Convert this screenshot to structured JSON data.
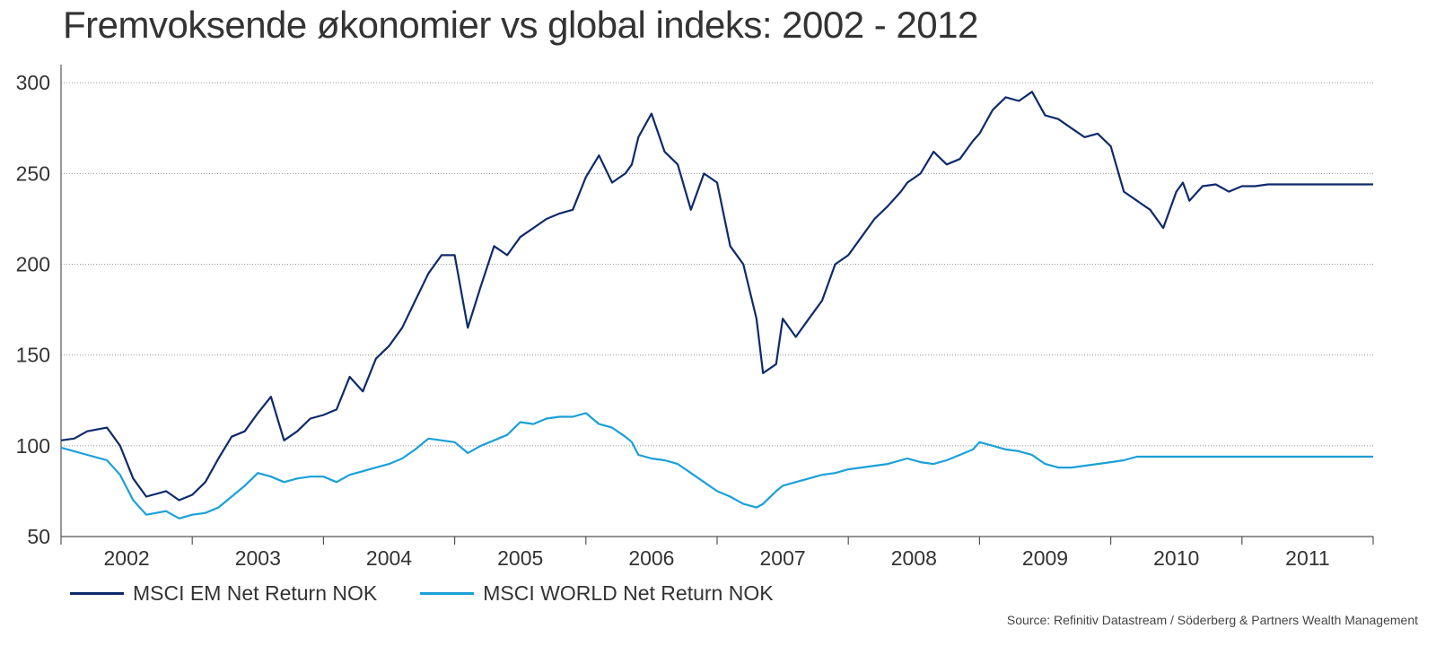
{
  "title": "Fremvoksende økonomier vs global indeks: 2002 - 2012",
  "source": "Source: Refinitiv Datastream / Söderberg & Partners Wealth Management",
  "chart_data": {
    "type": "line",
    "title": "Fremvoksende økonomier vs global indeks: 2002 - 2012",
    "xlabel": "",
    "ylabel": "",
    "xlim": [
      2002.0,
      2012.0
    ],
    "ylim": [
      50,
      310
    ],
    "yticks": [
      50,
      100,
      150,
      200,
      250,
      300
    ],
    "xtick_labels": [
      "2002",
      "2003",
      "2004",
      "2005",
      "2006",
      "2007",
      "2008",
      "2009",
      "2010",
      "2011"
    ],
    "grid": "horizontal dotted",
    "legend": "bottom",
    "series": [
      {
        "name": "MSCI EM Net Return NOK",
        "color": "#0d2a6b",
        "x": [
          2002.0,
          2002.1,
          2002.2,
          2002.35,
          2002.45,
          2002.55,
          2002.65,
          2002.8,
          2002.9,
          2003.0,
          2003.1,
          2003.2,
          2003.3,
          2003.4,
          2003.5,
          2003.6,
          2003.7,
          2003.8,
          2003.9,
          2004.0,
          2004.1,
          2004.2,
          2004.3,
          2004.4,
          2004.5,
          2004.6,
          2004.7,
          2004.8,
          2004.9,
          2005.0,
          2005.1,
          2005.2,
          2005.3,
          2005.4,
          2005.5,
          2005.6,
          2005.7,
          2005.8,
          2005.9,
          2006.0,
          2006.1,
          2006.2,
          2006.3,
          2006.35,
          2006.4,
          2006.5,
          2006.6,
          2006.7,
          2006.8,
          2006.9,
          2007.0,
          2007.1,
          2007.2,
          2007.3,
          2007.35,
          2007.45,
          2007.5,
          2007.6,
          2007.7,
          2007.8,
          2007.9,
          2008.0,
          2008.1,
          2008.2,
          2008.3,
          2008.4,
          2008.45,
          2008.55,
          2008.65,
          2008.75,
          2008.85,
          2008.95,
          2009.0,
          2009.1,
          2009.2,
          2009.3,
          2009.4,
          2009.5,
          2009.6,
          2009.7,
          2009.8,
          2009.9,
          2010.0,
          2010.1,
          2010.2,
          2010.3,
          2010.4,
          2010.5,
          2010.55,
          2010.6,
          2010.7,
          2010.8,
          2010.9,
          2011.0,
          2011.1,
          2011.2,
          2011.25,
          2011.3,
          2011.4,
          2011.5,
          2011.6,
          2011.7,
          2011.8,
          2011.9,
          2012.0
        ],
        "values": [
          103,
          104,
          108,
          110,
          100,
          82,
          72,
          75,
          70,
          73,
          80,
          93,
          105,
          108,
          118,
          127,
          103,
          108,
          115,
          117,
          120,
          138,
          130,
          148,
          155,
          165,
          180,
          195,
          205,
          205,
          165,
          188,
          210,
          205,
          215,
          220,
          225,
          228,
          230,
          248,
          260,
          245,
          250,
          255,
          270,
          283,
          262,
          255,
          230,
          250,
          245,
          210,
          200,
          170,
          140,
          145,
          170,
          160,
          170,
          180,
          200,
          205,
          215,
          225,
          232,
          240,
          245,
          250,
          262,
          255,
          258,
          268,
          272,
          285,
          292,
          290,
          295,
          282,
          280,
          275,
          270,
          272,
          265,
          240,
          235,
          230,
          220,
          240,
          245,
          235,
          243,
          244,
          240,
          243,
          243,
          244,
          244,
          244,
          244,
          244,
          244,
          244,
          244,
          244,
          244
        ]
      },
      {
        "name": "MSCI WORLD Net Return NOK",
        "color": "#1aa0d8",
        "x": [
          2002.0,
          2002.1,
          2002.2,
          2002.35,
          2002.45,
          2002.55,
          2002.65,
          2002.8,
          2002.9,
          2003.0,
          2003.1,
          2003.2,
          2003.3,
          2003.4,
          2003.5,
          2003.6,
          2003.7,
          2003.8,
          2003.9,
          2004.0,
          2004.1,
          2004.2,
          2004.3,
          2004.4,
          2004.5,
          2004.6,
          2004.7,
          2004.8,
          2004.9,
          2005.0,
          2005.1,
          2005.2,
          2005.3,
          2005.4,
          2005.5,
          2005.6,
          2005.7,
          2005.8,
          2005.9,
          2006.0,
          2006.1,
          2006.2,
          2006.3,
          2006.35,
          2006.4,
          2006.5,
          2006.6,
          2006.7,
          2006.8,
          2006.9,
          2007.0,
          2007.1,
          2007.2,
          2007.3,
          2007.35,
          2007.45,
          2007.5,
          2007.6,
          2007.7,
          2007.8,
          2007.9,
          2008.0,
          2008.1,
          2008.2,
          2008.3,
          2008.4,
          2008.45,
          2008.55,
          2008.65,
          2008.75,
          2008.85,
          2008.95,
          2009.0,
          2009.1,
          2009.2,
          2009.3,
          2009.4,
          2009.5,
          2009.6,
          2009.7,
          2009.8,
          2009.9,
          2010.0,
          2010.1,
          2010.2,
          2010.3,
          2010.4,
          2010.5,
          2010.55,
          2010.6,
          2010.7,
          2010.8,
          2010.9,
          2011.0,
          2011.1,
          2011.2,
          2011.25,
          2011.3,
          2011.4,
          2011.5,
          2011.6,
          2011.7,
          2011.8,
          2011.9,
          2012.0
        ],
        "values": [
          99,
          97,
          95,
          92,
          84,
          70,
          62,
          64,
          60,
          62,
          63,
          66,
          72,
          78,
          85,
          83,
          80,
          82,
          83,
          83,
          80,
          84,
          86,
          88,
          90,
          93,
          98,
          104,
          103,
          102,
          96,
          100,
          103,
          106,
          113,
          112,
          115,
          116,
          116,
          118,
          112,
          110,
          105,
          102,
          95,
          93,
          92,
          90,
          85,
          80,
          75,
          72,
          68,
          66,
          68,
          75,
          78,
          80,
          82,
          84,
          85,
          87,
          88,
          89,
          90,
          92,
          93,
          91,
          90,
          92,
          95,
          98,
          102,
          100,
          98,
          97,
          95,
          90,
          88,
          88,
          89,
          90,
          91,
          92,
          94,
          94,
          94,
          94,
          94,
          94,
          94,
          94,
          94,
          94,
          94,
          94,
          94,
          94,
          94,
          94,
          94,
          94,
          94,
          94,
          94
        ]
      }
    ]
  }
}
